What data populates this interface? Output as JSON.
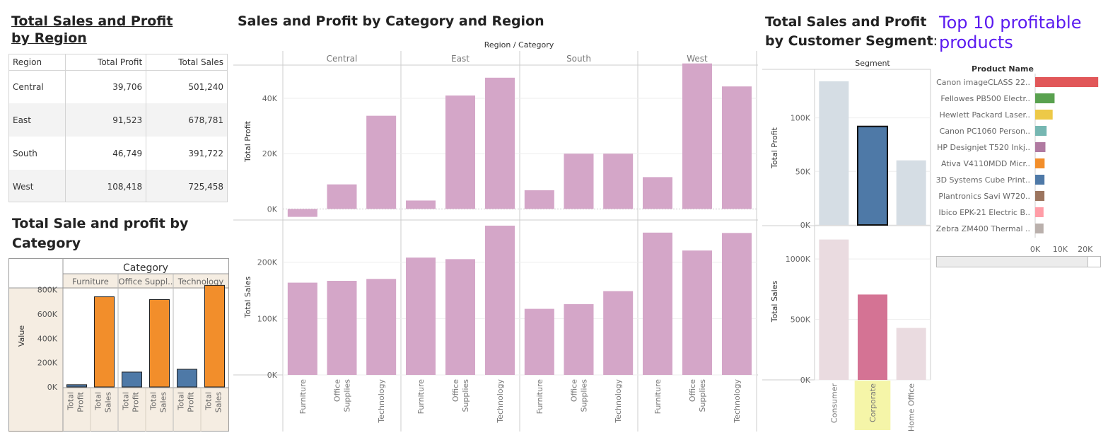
{
  "region_panel": {
    "title": "Total Sales and Profit by Region",
    "headers": [
      "Region",
      "Total Profit",
      "Total Sales"
    ],
    "rows": [
      {
        "region": "Central",
        "profit": "39,706",
        "sales": "501,240"
      },
      {
        "region": "East",
        "profit": "91,523",
        "sales": "678,781"
      },
      {
        "region": "South",
        "profit": "46,749",
        "sales": "391,722"
      },
      {
        "region": "West",
        "profit": "108,418",
        "sales": "725,458"
      }
    ]
  },
  "category_panel": {
    "title": "Total Sale and profit by Category",
    "header": "Category",
    "categories": [
      "Furniture",
      "Office Suppl..",
      "Technology"
    ],
    "ylabel": "Value",
    "y_ticks": [
      "800K",
      "600K",
      "400K",
      "200K",
      "0K"
    ],
    "measure_labels": [
      [
        "Total",
        "Profit"
      ],
      [
        "Total",
        "Sales"
      ]
    ]
  },
  "region_category_panel": {
    "title": "Sales and Profit by Category and Region",
    "header": "Region / Category",
    "regions": [
      "Central",
      "East",
      "South",
      "West"
    ],
    "categories": [
      [
        "Furniture"
      ],
      [
        "Office",
        "Supplies"
      ],
      [
        "Technology"
      ]
    ],
    "profit_label": "Total Profit",
    "sales_label": "Total Sales",
    "profit_ticks": [
      "40K",
      "20K",
      "0K"
    ],
    "sales_ticks": [
      "200K",
      "100K",
      "0K"
    ]
  },
  "segment_panel": {
    "title_line1": "Total Sales and Profit",
    "title_line2": "by Customer Segment",
    "title_suffix": ":",
    "header": "Segment",
    "segments": [
      "Consumer",
      "Corporate",
      "Home Office"
    ],
    "profit_label": "Total Profit",
    "sales_label": "Total Sales",
    "profit_ticks": [
      "100K",
      "50K",
      "0K"
    ],
    "sales_ticks": [
      "1000K",
      "500K",
      "0K"
    ]
  },
  "products_panel": {
    "title": "Top 10 profitable products",
    "header": "Product Name",
    "x_ticks": [
      "0K",
      "10K",
      "20K"
    ],
    "products": [
      {
        "name": "Canon imageCLASS 22..",
        "color": "#e15759"
      },
      {
        "name": "Fellowes PB500 Electr..",
        "color": "#59a14f"
      },
      {
        "name": "Hewlett Packard Laser..",
        "color": "#edc948"
      },
      {
        "name": "Canon PC1060 Person..",
        "color": "#76b7b2"
      },
      {
        "name": "HP Designjet T520 Inkj..",
        "color": "#b07aa1"
      },
      {
        "name": "Ativa V4110MDD Micr..",
        "color": "#f28e2b"
      },
      {
        "name": "3D Systems Cube Print..",
        "color": "#4e79a7"
      },
      {
        "name": "Plantronics Savi W720..",
        "color": "#9c755f"
      },
      {
        "name": "Ibico EPK-21 Electric B..",
        "color": "#ff9da7"
      },
      {
        "name": "Zebra ZM400 Thermal ..",
        "color": "#bab0ac"
      }
    ]
  },
  "chart_data": [
    {
      "type": "table",
      "title": "Total Sales and Profit by Region",
      "columns": [
        "Region",
        "Total Profit",
        "Total Sales"
      ],
      "rows": [
        [
          "Central",
          39706,
          501240
        ],
        [
          "East",
          91523,
          678781
        ],
        [
          "South",
          46749,
          391722
        ],
        [
          "West",
          108418,
          725458
        ]
      ]
    },
    {
      "type": "bar",
      "title": "Total Sale and profit by Category",
      "categories": [
        "Furniture",
        "Office Suppl..",
        "Technology"
      ],
      "series": [
        {
          "name": "Total Profit",
          "values": [
            18451,
            122491,
            145455
          ],
          "color": "#4e79a7"
        },
        {
          "name": "Total Sales",
          "values": [
            742000,
            719047,
            836154
          ],
          "color": "#f28e2b"
        }
      ],
      "ylabel": "Value",
      "ylim": [
        0,
        850000
      ]
    },
    {
      "type": "bar",
      "title": "Sales and Profit by Category and Region",
      "regions": [
        "Central",
        "East",
        "South",
        "West"
      ],
      "categories": [
        "Furniture",
        "Office Supplies",
        "Technology"
      ],
      "series": [
        {
          "name": "Total Profit",
          "values": [
            [
              -2871,
              8880,
              33697
            ],
            [
              3046,
              41015,
              47463
            ],
            [
              6771,
              19986,
              19992
            ],
            [
              11505,
              52610,
              44304
            ]
          ],
          "ylim": [
            -4000,
            51000
          ]
        },
        {
          "name": "Total Sales",
          "values": [
            [
              163797,
              167026,
              170416
            ],
            [
              208291,
              205516,
              264974
            ],
            [
              117299,
              125651,
              148772
            ],
            [
              252613,
              220853,
              251992
            ]
          ],
          "ylim": [
            0,
            270000
          ]
        }
      ],
      "color": "#d4a6c8"
    },
    {
      "type": "bar",
      "title": "Total Sales and Profit by Customer Segment",
      "categories": [
        "Consumer",
        "Corporate",
        "Home Office"
      ],
      "series": [
        {
          "name": "Total Profit",
          "values": [
            134119,
            91979,
            60299
          ],
          "ylim": [
            0,
            140000
          ]
        },
        {
          "name": "Total Sales",
          "values": [
            1161401,
            706146,
            429653
          ],
          "ylim": [
            0,
            1200000
          ]
        }
      ],
      "highlighted": "Corporate",
      "colors": {
        "profit_highlight": "#4e79a7",
        "profit_muted": "#d5dde4",
        "sales_highlight": "#d47394",
        "sales_muted": "#eadbe0",
        "label_highlight": "#f5f5a8"
      }
    },
    {
      "type": "bar",
      "title": "Top 10 profitable products",
      "orientation": "horizontal",
      "categories": [
        "Canon imageCLASS 22..",
        "Fellowes PB500 Electr..",
        "Hewlett Packard Laser..",
        "Canon PC1060 Person..",
        "HP Designjet T520 Inkj..",
        "Ativa V4110MDD Micr..",
        "3D Systems Cube Print..",
        "Plantronics Savi W720..",
        "Ibico EPK-21 Electric B..",
        "Zebra ZM400 Thermal .."
      ],
      "values": [
        25200,
        7753,
        6984,
        4571,
        4095,
        3772,
        3717,
        3696,
        3346,
        3344
      ],
      "xlim": [
        0,
        26000
      ]
    }
  ]
}
